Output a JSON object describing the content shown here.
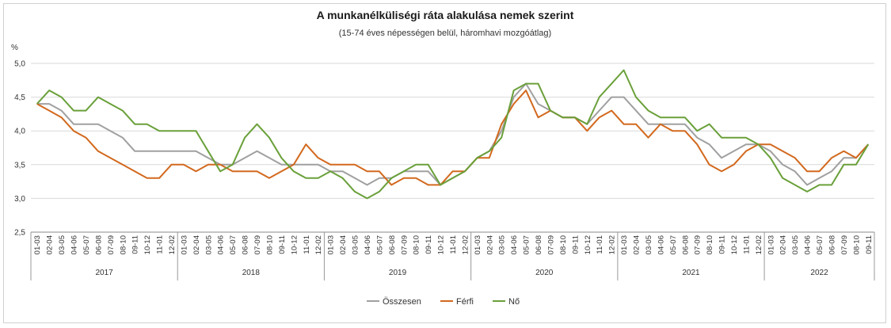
{
  "chart_data": {
    "type": "line",
    "title": "A munkanélküliségi ráta alakulása nemek szerint",
    "subtitle": "(15-74 éves népességen belül, háromhavi mozgóátlag)",
    "ylabel": "%",
    "ylim": [
      2.5,
      5.0
    ],
    "yticks": [
      "2,5",
      "3,0",
      "3,5",
      "4,0",
      "4,5",
      "5,0"
    ],
    "grid": true,
    "legend_position": "bottom",
    "years": [
      "2017",
      "2018",
      "2019",
      "2020",
      "2021",
      "2022"
    ],
    "x": [
      "01-03",
      "02-04",
      "03-05",
      "04-06",
      "05-07",
      "06-08",
      "07-09",
      "08-10",
      "09-11",
      "10-12",
      "11-01",
      "12-02",
      "01-03",
      "02-04",
      "03-05",
      "04-06",
      "05-07",
      "06-08",
      "07-09",
      "08-10",
      "09-11",
      "10-12",
      "11-01",
      "12-02",
      "01-03",
      "02-04",
      "03-05",
      "04-06",
      "05-07",
      "06-08",
      "07-09",
      "08-10",
      "09-11",
      "10-12",
      "11-01",
      "12-02",
      "01-03",
      "02-04",
      "03-05",
      "04-06",
      "05-07",
      "06-08",
      "07-09",
      "08-10",
      "09-11",
      "10-12",
      "11-01",
      "12-02",
      "01-03",
      "02-04",
      "03-05",
      "04-06",
      "05-07",
      "06-08",
      "07-09",
      "08-10",
      "09-11",
      "10-12",
      "11-01",
      "12-02",
      "01-03",
      "02-04",
      "03-05",
      "04-06",
      "05-07",
      "06-08",
      "07-09",
      "08-10",
      "09-11"
    ],
    "series": [
      {
        "name": "Összesen",
        "color": "#a0a0a0",
        "values": [
          4.4,
          4.4,
          4.3,
          4.1,
          4.1,
          4.1,
          4.0,
          3.9,
          3.7,
          3.7,
          3.7,
          3.7,
          3.7,
          3.7,
          3.6,
          3.5,
          3.5,
          3.6,
          3.7,
          3.6,
          3.5,
          3.5,
          3.5,
          3.5,
          3.4,
          3.4,
          3.3,
          3.2,
          3.3,
          3.3,
          3.4,
          3.4,
          3.4,
          3.2,
          3.3,
          3.4,
          3.6,
          3.7,
          4.0,
          4.5,
          4.7,
          4.4,
          4.3,
          4.2,
          4.2,
          4.1,
          4.3,
          4.5,
          4.5,
          4.3,
          4.1,
          4.1,
          4.1,
          4.1,
          3.9,
          3.8,
          3.6,
          3.7,
          3.8,
          3.8,
          3.7,
          3.5,
          3.4,
          3.2,
          3.3,
          3.4,
          3.6,
          3.6,
          3.8
        ]
      },
      {
        "name": "Férfi",
        "color": "#d2691e",
        "values": [
          4.4,
          4.3,
          4.2,
          4.0,
          3.9,
          3.7,
          3.6,
          3.5,
          3.4,
          3.3,
          3.3,
          3.5,
          3.5,
          3.4,
          3.5,
          3.5,
          3.4,
          3.4,
          3.4,
          3.3,
          3.4,
          3.5,
          3.8,
          3.6,
          3.5,
          3.5,
          3.5,
          3.4,
          3.4,
          3.2,
          3.3,
          3.3,
          3.2,
          3.2,
          3.4,
          3.4,
          3.6,
          3.6,
          4.1,
          4.4,
          4.6,
          4.2,
          4.3,
          4.2,
          4.2,
          4.0,
          4.2,
          4.3,
          4.1,
          4.1,
          3.9,
          4.1,
          4.0,
          4.0,
          3.8,
          3.5,
          3.4,
          3.5,
          3.7,
          3.8,
          3.8,
          3.7,
          3.6,
          3.4,
          3.4,
          3.6,
          3.7,
          3.6,
          3.8
        ]
      },
      {
        "name": "Nő",
        "color": "#6aa03a",
        "values": [
          4.4,
          4.6,
          4.5,
          4.3,
          4.3,
          4.5,
          4.4,
          4.3,
          4.1,
          4.1,
          4.0,
          4.0,
          4.0,
          4.0,
          3.7,
          3.4,
          3.5,
          3.9,
          4.1,
          3.9,
          3.6,
          3.4,
          3.3,
          3.3,
          3.4,
          3.3,
          3.1,
          3.0,
          3.1,
          3.3,
          3.4,
          3.5,
          3.5,
          3.2,
          3.3,
          3.4,
          3.6,
          3.7,
          3.9,
          4.6,
          4.7,
          4.7,
          4.3,
          4.2,
          4.2,
          4.1,
          4.5,
          4.7,
          4.9,
          4.5,
          4.3,
          4.2,
          4.2,
          4.2,
          4.0,
          4.1,
          3.9,
          3.9,
          3.9,
          3.8,
          3.6,
          3.3,
          3.2,
          3.1,
          3.2,
          3.2,
          3.5,
          3.5,
          3.8
        ]
      }
    ]
  }
}
